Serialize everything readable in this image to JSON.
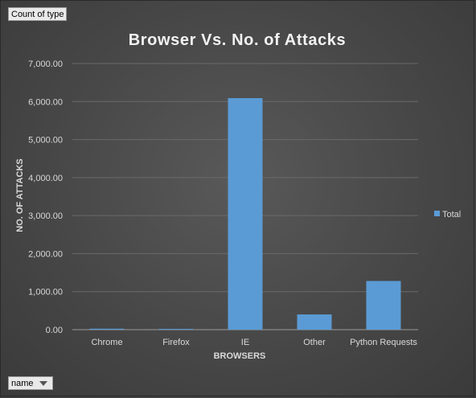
{
  "pivot_fields": {
    "value_field": "Count of type",
    "axis_field": "name"
  },
  "chart_data": {
    "type": "bar",
    "title": "Browser Vs. No. of Attacks",
    "xlabel": "BROWSERS",
    "ylabel": "NO. OF ATTACKS",
    "categories": [
      "Chrome",
      "Firefox",
      "IE",
      "Other",
      "Python Requests"
    ],
    "series": [
      {
        "name": "Total",
        "values": [
          25,
          20,
          6090,
          400,
          1280
        ],
        "color": "#5b9bd5"
      }
    ],
    "ylim": [
      0,
      7000
    ],
    "yticks": [
      0,
      1000,
      2000,
      3000,
      4000,
      5000,
      6000,
      7000
    ],
    "ytick_labels": [
      "0.00",
      "1,000.00",
      "2,000.00",
      "3,000.00",
      "4,000.00",
      "5,000.00",
      "6,000.00",
      "7,000.00"
    ],
    "grid": true,
    "legend_position": "right"
  }
}
